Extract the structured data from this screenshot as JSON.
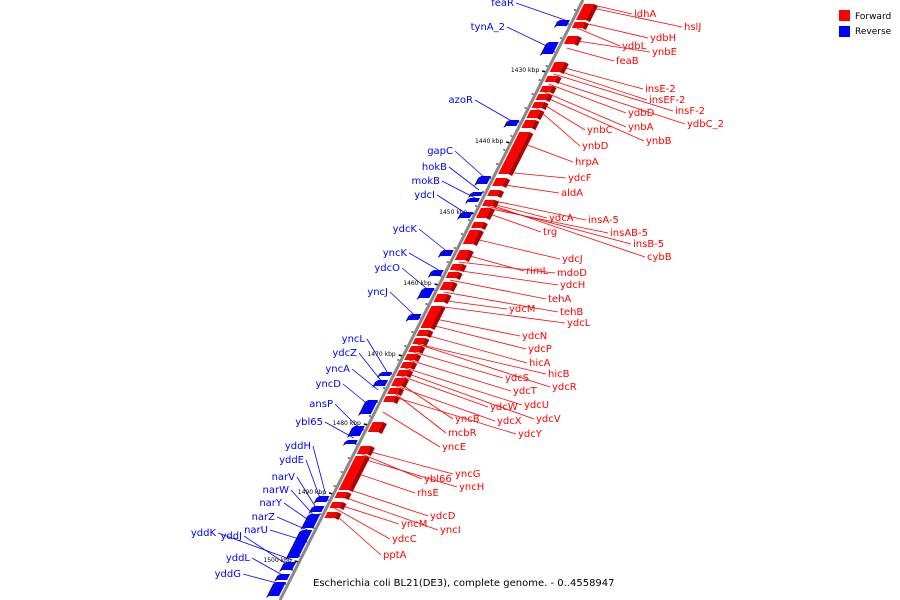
{
  "caption": "Escherichia coli BL21(DE3), complete genome. - 0..4558947",
  "legend": [
    {
      "label": "Forward",
      "color": "#ff0000"
    },
    {
      "label": "Reverse",
      "color": "#0000ff"
    }
  ],
  "colors": {
    "forward": "#ff0000",
    "reverse": "#0000ff",
    "backbone": "#888888"
  },
  "ticks": [
    "1430 kbp",
    "1440 kbp",
    "1450 kbp",
    "1460 kbp",
    "1470 kbp",
    "1480 kbp",
    "1490 kbp",
    "1500 kbp"
  ],
  "forward_genes": [
    "ldhA",
    "hslJ",
    "ydbH",
    "ydbL",
    "ynbE",
    "feaB",
    "insE-2",
    "insEF-2",
    "insF-2",
    "ydbD",
    "ydbC_2",
    "ynbA",
    "ynbC",
    "ynbB",
    "ynbD",
    "hrpA",
    "ydcF",
    "aldA",
    "ydcA",
    "insA-5",
    "trg",
    "insAB-5",
    "insB-5",
    "cybB",
    "ydcJ",
    "rimL",
    "mdoD",
    "ydcH",
    "tehA",
    "tehB",
    "ydcM",
    "ydcL",
    "ydcN",
    "ydcP",
    "hicA",
    "hicB",
    "ydcS",
    "ydcR",
    "ydcT",
    "ydcU",
    "ydcW",
    "ydcV",
    "yncB",
    "ydcX",
    "mcbR",
    "ydcY",
    "yncE",
    "yncG",
    "ybl66",
    "yncH",
    "rhsE",
    "ydcD",
    "yncM",
    "yncI",
    "ydcC",
    "pptA"
  ],
  "reverse_genes": [
    "feaR",
    "tynA_2",
    "azoR",
    "gapC",
    "hokB",
    "mokB",
    "ydcI",
    "ydcK",
    "yncK",
    "ydcO",
    "yncJ",
    "yncL",
    "ydcZ",
    "yncA",
    "yncD",
    "ansP",
    "ybl65",
    "yddH",
    "yddE",
    "narV",
    "narW",
    "narY",
    "narZ",
    "narU",
    "yddK",
    "yddJ",
    "yddL",
    "yddG"
  ]
}
